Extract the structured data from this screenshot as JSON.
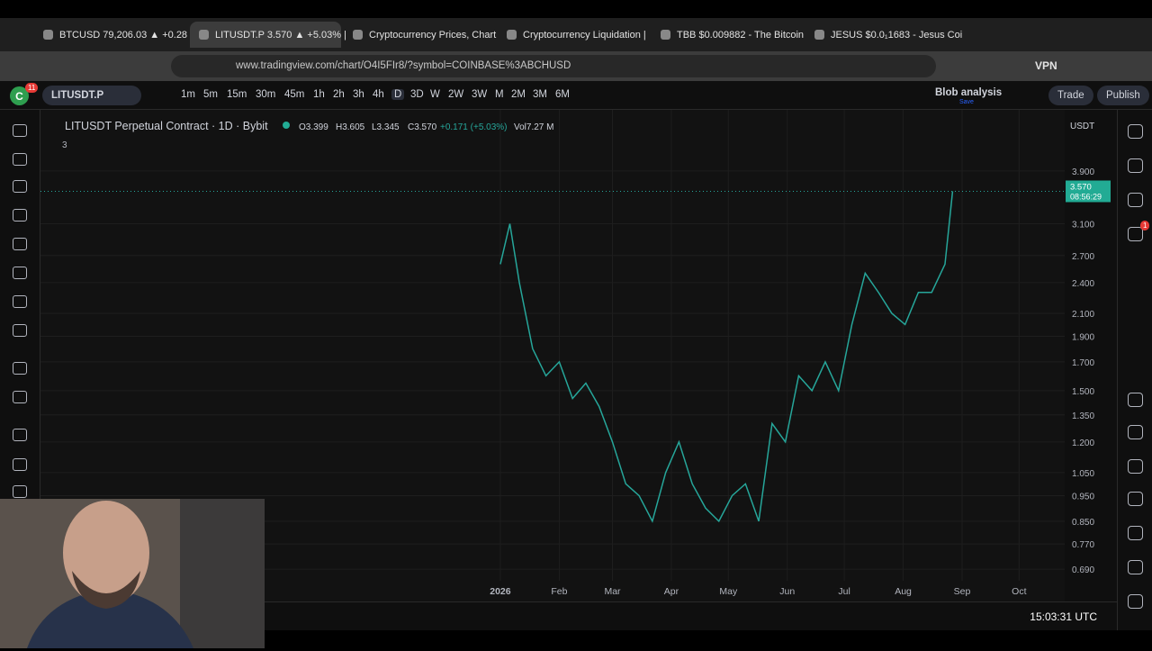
{
  "browser": {
    "tabs": [
      {
        "title": "BTCUSD 79,206.03 ▲ +0.28"
      },
      {
        "title": "LITUSDT.P 3.570 ▲ +5.03% |"
      },
      {
        "title": "Cryptocurrency Prices, Chart"
      },
      {
        "title": "Cryptocurrency Liquidation |"
      },
      {
        "title": "TBB $0.009882 - The Bitcoin"
      },
      {
        "title": "JESUS $0.0₁1683 - Jesus Coi"
      }
    ],
    "active_tab": 1,
    "url": "www.tradingview.com/chart/O4I5FIr8/?symbol=COINBASE%3ABCHUSD",
    "vpn": "VPN"
  },
  "toolbar": {
    "avatar": "C",
    "avatar_badge": "11",
    "symbol": "LITUSDT.P",
    "intervals": [
      "1m",
      "5m",
      "15m",
      "30m",
      "45m",
      "1h",
      "2h",
      "3h",
      "4h",
      "D",
      "3D",
      "W",
      "2W",
      "3W",
      "M",
      "2M",
      "3M",
      "6M"
    ],
    "active_interval": 9,
    "layout_name": "Blob analysis",
    "layout_status": "Save",
    "trade": "Trade",
    "publish": "Publish"
  },
  "legend": {
    "title": "LITUSDT Perpetual Contract · 1D · Bybit",
    "open": "O3.399",
    "high": "H3.605",
    "low": "L3.345",
    "close": "C3.570",
    "change": "+0.171 (+5.03%)",
    "volume": "Vol7.27 M",
    "indicators_count": "3"
  },
  "chart_data": {
    "type": "line",
    "color": "#26a69a",
    "log_scale": true,
    "x": [
      0,
      5,
      10,
      17,
      24,
      31,
      38,
      45,
      52,
      59,
      66,
      73,
      80,
      87,
      94,
      101,
      108,
      115,
      122,
      129,
      136,
      143,
      150,
      157,
      164,
      171,
      178,
      185,
      192,
      199,
      206,
      213,
      220,
      227,
      234,
      238
    ],
    "values": [
      2.6,
      3.1,
      2.4,
      1.8,
      1.6,
      1.7,
      1.45,
      1.55,
      1.4,
      1.2,
      1.0,
      0.95,
      0.85,
      1.05,
      1.2,
      1.0,
      0.9,
      0.85,
      0.95,
      1.0,
      0.85,
      1.3,
      1.2,
      1.6,
      1.5,
      1.7,
      1.5,
      2.0,
      2.5,
      2.3,
      2.1,
      2.0,
      2.3,
      2.3,
      2.6,
      3.57
    ],
    "xlim": [
      -242,
      297
    ],
    "xticks": [
      {
        "value": 0,
        "label": "2026"
      },
      {
        "value": 31,
        "label": "Feb"
      },
      {
        "value": 59,
        "label": "Mar"
      },
      {
        "value": 90,
        "label": "Apr"
      },
      {
        "value": 120,
        "label": "May"
      },
      {
        "value": 151,
        "label": "Jun"
      },
      {
        "value": 181,
        "label": "Jul"
      },
      {
        "value": 212,
        "label": "Aug"
      },
      {
        "value": 243,
        "label": "Sep"
      },
      {
        "value": 273,
        "label": "Oct"
      }
    ],
    "ylim": [
      0.656,
      4.56
    ],
    "yticks": [
      {
        "value": 3.9,
        "label": "3.900"
      },
      {
        "value": 3.1,
        "label": "3.100"
      },
      {
        "value": 2.7,
        "label": "2.700"
      },
      {
        "value": 2.4,
        "label": "2.400"
      },
      {
        "value": 2.1,
        "label": "2.100"
      },
      {
        "value": 1.9,
        "label": "1.900"
      },
      {
        "value": 1.7,
        "label": "1.700"
      },
      {
        "value": 1.5,
        "label": "1.500"
      },
      {
        "value": 1.35,
        "label": "1.350"
      },
      {
        "value": 1.2,
        "label": "1.200"
      },
      {
        "value": 1.05,
        "label": "1.050"
      },
      {
        "value": 0.95,
        "label": "0.950"
      },
      {
        "value": 0.85,
        "label": "0.850"
      },
      {
        "value": 0.77,
        "label": "0.770"
      },
      {
        "value": 0.69,
        "label": "0.690"
      }
    ],
    "grid": true,
    "last_price": {
      "value": 3.57,
      "label": "3.570",
      "countdown": "08:56:29"
    }
  },
  "right_panel": {
    "currency": "USDT",
    "badge": "1"
  },
  "status": {
    "time": "15:03:31 UTC"
  }
}
